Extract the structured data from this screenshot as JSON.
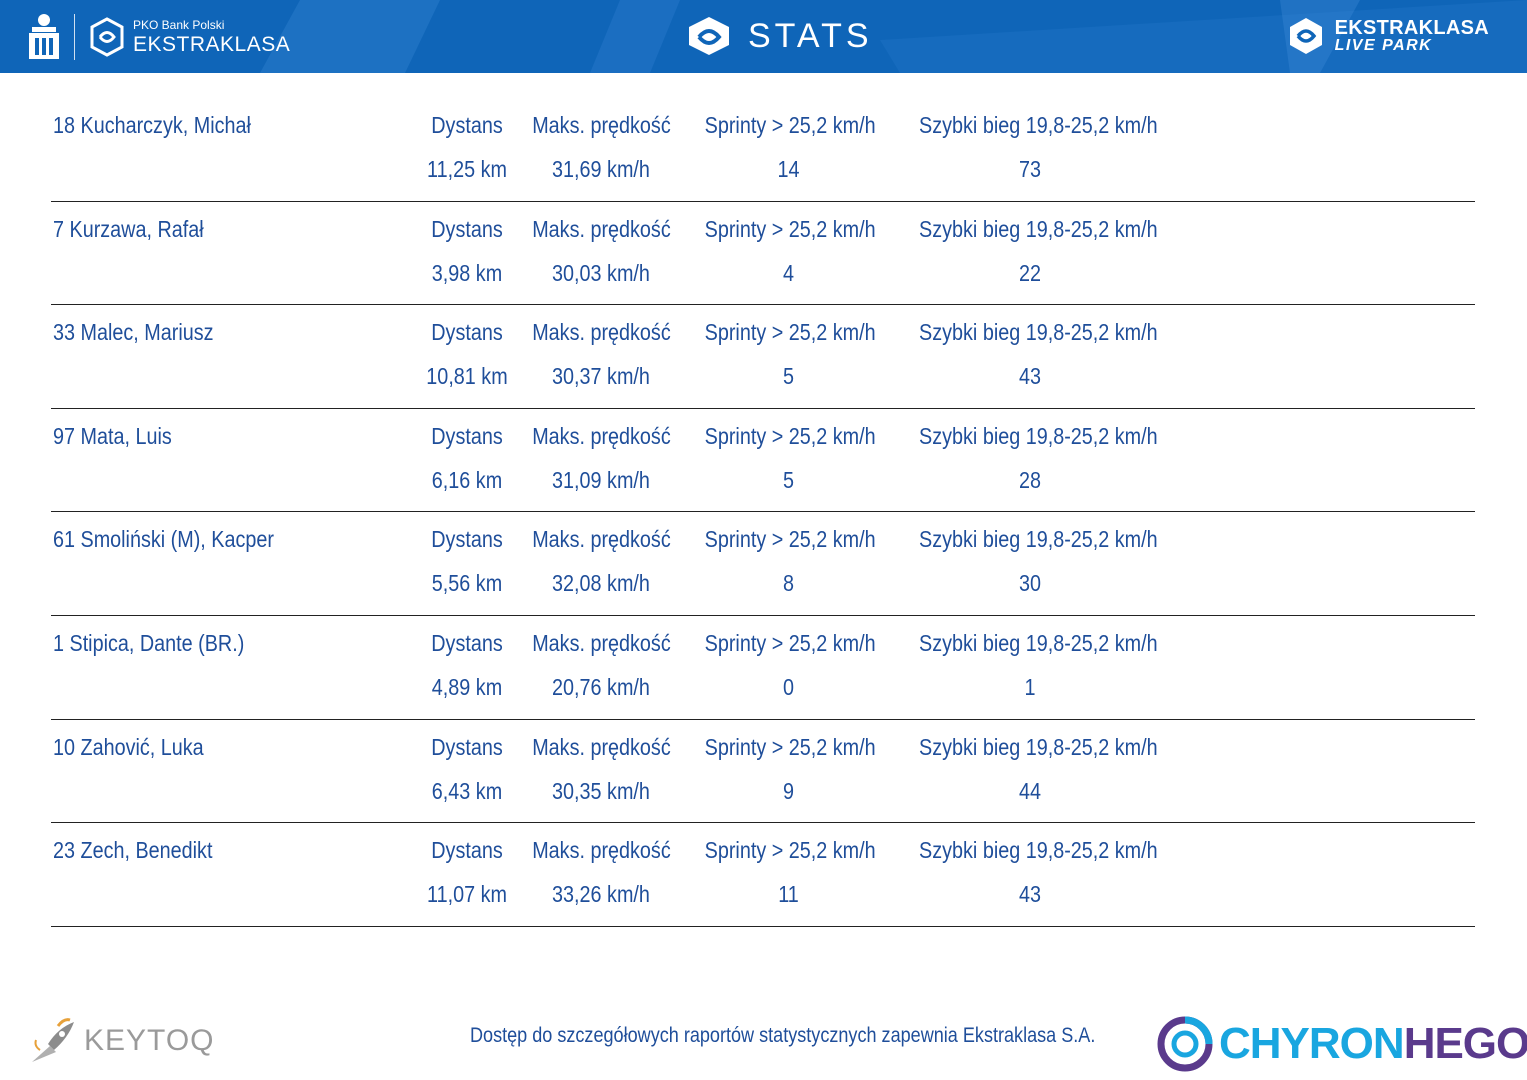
{
  "header": {
    "sponsor_sub": "PKO Bank Polski",
    "sponsor_main": "EKSTRAKLASA",
    "title": "STATS",
    "livepark_line1": "EKSTRAKLASA",
    "livepark_line2": "LIVE PARK",
    "banner_color": "#0f65b8"
  },
  "labels": {
    "distance": "Dystans",
    "max_speed": "Maks. prędkość",
    "sprints": "Sprinty > 25,2 km/h",
    "fast_runs": "Szybki bieg 19,8-25,2 km/h"
  },
  "players": [
    {
      "name": "18  Kucharczyk, Michał",
      "distance": "11,25 km",
      "max_speed": "31,69 km/h",
      "sprints": "14",
      "fast_runs": "73"
    },
    {
      "name": "7  Kurzawa, Rafał",
      "distance": "3,98 km",
      "max_speed": "30,03 km/h",
      "sprints": "4",
      "fast_runs": "22"
    },
    {
      "name": "33  Malec, Mariusz",
      "distance": "10,81 km",
      "max_speed": "30,37 km/h",
      "sprints": "5",
      "fast_runs": "43"
    },
    {
      "name": "97  Mata, Luis",
      "distance": "6,16 km",
      "max_speed": "31,09 km/h",
      "sprints": "5",
      "fast_runs": "28"
    },
    {
      "name": "61  Smoliński (M), Kacper",
      "distance": "5,56 km",
      "max_speed": "32,08 km/h",
      "sprints": "8",
      "fast_runs": "30"
    },
    {
      "name": "1  Stipica, Dante (BR.)",
      "distance": "4,89 km",
      "max_speed": "20,76 km/h",
      "sprints": "0",
      "fast_runs": "1"
    },
    {
      "name": "10  Zahović, Luka",
      "distance": "6,43 km",
      "max_speed": "30,35 km/h",
      "sprints": "9",
      "fast_runs": "44"
    },
    {
      "name": "23  Zech, Benedikt",
      "distance": "11,07 km",
      "max_speed": "33,26 km/h",
      "sprints": "11",
      "fast_runs": "43"
    }
  ],
  "footer": {
    "note": "Dostęp do szczegółowych raportów statystycznych zapewnia Ekstraklasa S.A.",
    "keytoq": "KEYTOQ",
    "chyron_a": "CHYRON",
    "chyron_b": "HEGO"
  },
  "colors": {
    "text_blue": "#1f4e9a",
    "chyron_cyan": "#19a6e0",
    "chyron_purple": "#5a3a8c"
  }
}
